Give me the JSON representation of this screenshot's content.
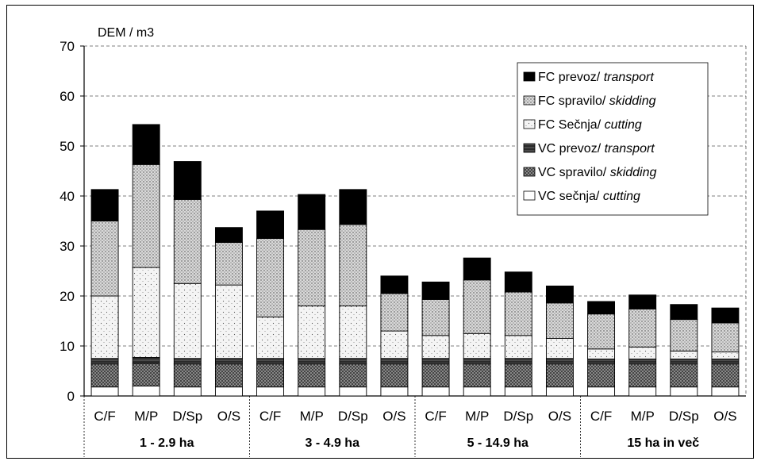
{
  "chart_data": {
    "type": "bar",
    "stacked": true,
    "ylabel": "DEM / m3",
    "ylim": [
      0,
      70
    ],
    "yticks": [
      0,
      10,
      20,
      30,
      40,
      50,
      60,
      70
    ],
    "grid": true,
    "legend_position": "top-right",
    "categories": [
      "C/F",
      "M/P",
      "D/Sp",
      "O/S",
      "C/F",
      "M/P",
      "D/Sp",
      "O/S",
      "C/F",
      "M/P",
      "D/Sp",
      "O/S",
      "C/F",
      "M/P",
      "D/Sp",
      "O/S"
    ],
    "groups": [
      {
        "label": "1 - 2.9 ha",
        "count": 4
      },
      {
        "label": "3 - 4.9 ha",
        "count": 4
      },
      {
        "label": "5 - 14.9 ha",
        "count": 4
      },
      {
        "label": "15 ha in več",
        "count": 4
      }
    ],
    "series": [
      {
        "name": "VC sečnja",
        "name_en": "cutting",
        "color": "#ffffff",
        "pattern": "empty",
        "values": [
          1.8,
          2.0,
          1.8,
          1.8,
          1.8,
          1.8,
          1.8,
          1.8,
          1.8,
          1.8,
          1.8,
          1.8,
          1.8,
          1.8,
          1.8,
          1.8
        ]
      },
      {
        "name": "VC spravilo",
        "name_en": "skidding",
        "color": "#8a8a8a",
        "pattern": "cross-hatch",
        "values": [
          4.6,
          4.5,
          4.6,
          4.6,
          4.6,
          4.6,
          4.6,
          4.6,
          4.6,
          4.6,
          4.6,
          4.6,
          4.6,
          4.6,
          4.6,
          4.6
        ]
      },
      {
        "name": "VC prevoz",
        "name_en": "transport",
        "color": "#2e2e2e",
        "pattern": "dark-hatch",
        "values": [
          1.1,
          1.2,
          1.1,
          1.1,
          1.1,
          1.1,
          1.1,
          1.1,
          1.1,
          1.1,
          1.1,
          1.1,
          1.0,
          1.0,
          1.0,
          1.0
        ]
      },
      {
        "name": "FC Sečnja",
        "name_en": "cutting",
        "color": "#f2f2f2",
        "pattern": "sparse-dots",
        "values": [
          12.5,
          18.0,
          15.0,
          14.7,
          8.3,
          10.5,
          10.5,
          5.5,
          4.6,
          5.0,
          4.6,
          4.0,
          2.0,
          2.4,
          1.6,
          1.4
        ]
      },
      {
        "name": "FC spravilo",
        "name_en": "skidding",
        "color": "#d0d0d0",
        "pattern": "dense-dots",
        "values": [
          15.0,
          20.6,
          16.8,
          8.5,
          15.7,
          15.3,
          16.3,
          7.5,
          7.2,
          10.7,
          8.7,
          7.1,
          7.0,
          7.6,
          6.3,
          5.8
        ]
      },
      {
        "name": "FC prevoz",
        "name_en": "transport",
        "color": "#000000",
        "pattern": "solid",
        "values": [
          6.3,
          8.0,
          7.6,
          3.0,
          5.5,
          7.0,
          7.0,
          3.5,
          3.5,
          4.4,
          4.0,
          3.4,
          2.5,
          2.8,
          3.0,
          3.0
        ]
      }
    ]
  }
}
